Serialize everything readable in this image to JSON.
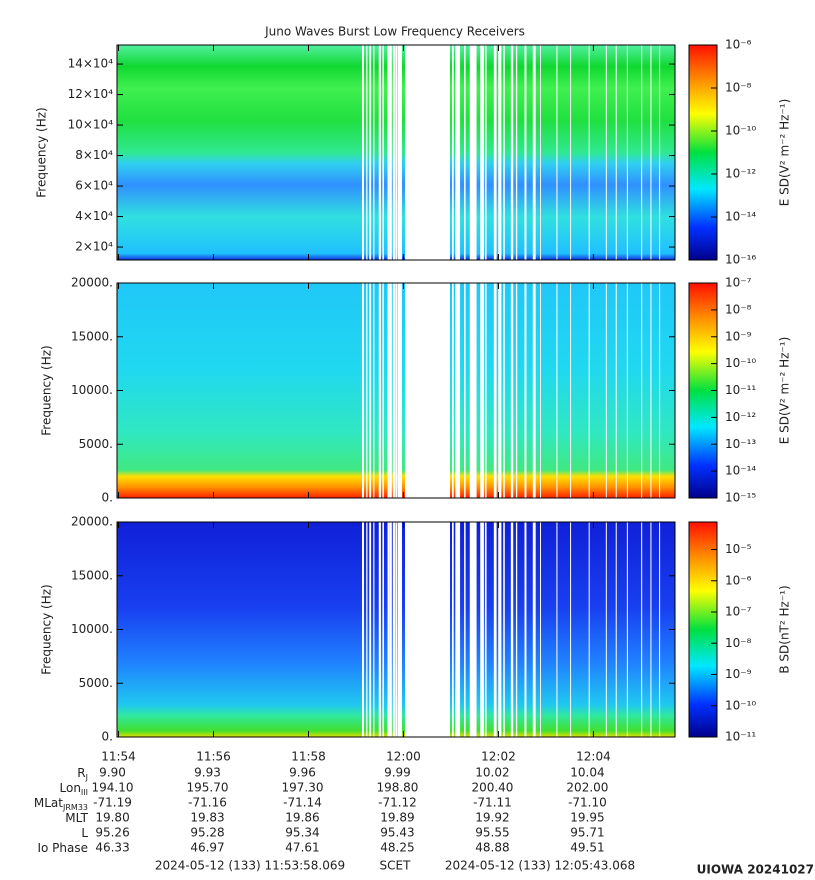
{
  "title": "Juno Waves Burst Low Frequency Receivers",
  "chart_data": [
    {
      "type": "spectrogram",
      "ylabel": "Frequency (Hz)",
      "ylim": [
        11500,
        152500
      ],
      "yticks": [
        {
          "value": 20000,
          "label": "2×10⁴"
        },
        {
          "value": 40000,
          "label": "4×10⁴"
        },
        {
          "value": 60000,
          "label": "6×10⁴"
        },
        {
          "value": 80000,
          "label": "8×10⁴"
        },
        {
          "value": 100000,
          "label": "10×10⁴"
        },
        {
          "value": 120000,
          "label": "12×10⁴"
        },
        {
          "value": 140000,
          "label": "14×10⁴"
        }
      ],
      "zlabel": "E SD(V² m⁻² Hz⁻¹)",
      "zscale": "log",
      "zlim": [
        1e-16,
        1e-06
      ],
      "zticks": [
        {
          "value": 1e-06,
          "label": "10⁻⁶"
        },
        {
          "value": 1e-08,
          "label": "10⁻⁸"
        },
        {
          "value": 1e-10,
          "label": "10⁻¹⁰"
        },
        {
          "value": 1e-12,
          "label": "10⁻¹²"
        },
        {
          "value": 1e-14,
          "label": "10⁻¹⁴"
        },
        {
          "value": 1e-16,
          "label": "10⁻¹⁶"
        }
      ]
    },
    {
      "type": "spectrogram",
      "ylabel": "Frequency (Hz)",
      "ylim": [
        0,
        20000
      ],
      "yticks": [
        {
          "value": 0,
          "label": "0."
        },
        {
          "value": 5000,
          "label": "5000."
        },
        {
          "value": 10000,
          "label": "10000."
        },
        {
          "value": 15000,
          "label": "15000."
        },
        {
          "value": 20000,
          "label": "20000."
        }
      ],
      "zlabel": "E SD(V² m⁻² Hz⁻¹)",
      "zscale": "log",
      "zlim": [
        1e-15,
        1e-07
      ],
      "zticks": [
        {
          "value": 1e-07,
          "label": "10⁻⁷"
        },
        {
          "value": 1e-08,
          "label": "10⁻⁸"
        },
        {
          "value": 1e-09,
          "label": "10⁻⁹"
        },
        {
          "value": 1e-10,
          "label": "10⁻¹⁰"
        },
        {
          "value": 1e-11,
          "label": "10⁻¹¹"
        },
        {
          "value": 1e-12,
          "label": "10⁻¹²"
        },
        {
          "value": 1e-13,
          "label": "10⁻¹³"
        },
        {
          "value": 1e-14,
          "label": "10⁻¹⁴"
        },
        {
          "value": 1e-15,
          "label": "10⁻¹⁵"
        }
      ]
    },
    {
      "type": "spectrogram",
      "ylabel": "Frequency (Hz)",
      "ylim": [
        0,
        20000
      ],
      "yticks": [
        {
          "value": 0,
          "label": "0."
        },
        {
          "value": 5000,
          "label": "5000."
        },
        {
          "value": 10000,
          "label": "10000."
        },
        {
          "value": 15000,
          "label": "15000."
        },
        {
          "value": 20000,
          "label": "20000."
        }
      ],
      "zlabel": "B SD(nT² Hz⁻¹)",
      "zscale": "log",
      "zlim": [
        1e-11,
        7.6e-05
      ],
      "zticks": [
        {
          "value": 1e-05,
          "label": "10⁻⁵"
        },
        {
          "value": 1e-06,
          "label": "10⁻⁶"
        },
        {
          "value": 1e-07,
          "label": "10⁻⁷"
        },
        {
          "value": 1e-08,
          "label": "10⁻⁸"
        },
        {
          "value": 1e-09,
          "label": "10⁻⁹"
        },
        {
          "value": 1e-10,
          "label": "10⁻¹⁰"
        },
        {
          "value": 1e-11,
          "label": "10⁻¹¹"
        }
      ]
    }
  ],
  "xticks": [
    "11:54",
    "11:56",
    "11:58",
    "12:00",
    "12:02",
    "12:04"
  ],
  "ephemeris": [
    {
      "label": "R",
      "sub": "J",
      "values": [
        "9.90",
        "9.93",
        "9.96",
        "9.99",
        "10.02",
        "10.04"
      ]
    },
    {
      "label": "Lon",
      "sub": "III",
      "values": [
        "194.10",
        "195.70",
        "197.30",
        "198.80",
        "200.40",
        "202.00"
      ]
    },
    {
      "label": "MLat",
      "sub": "JRM33",
      "values": [
        "-71.19",
        "-71.16",
        "-71.14",
        "-71.12",
        "-71.11",
        "-71.10"
      ]
    },
    {
      "label": "MLT",
      "values": [
        "19.80",
        "19.83",
        "19.86",
        "19.89",
        "19.92",
        "19.95"
      ]
    },
    {
      "label": "L",
      "values": [
        "95.26",
        "95.28",
        "95.34",
        "95.43",
        "95.55",
        "95.71"
      ]
    },
    {
      "label": "Io Phase",
      "values": [
        "46.33",
        "46.97",
        "47.61",
        "48.25",
        "48.88",
        "49.51"
      ]
    }
  ],
  "footer": {
    "start": "2024-05-12 (133) 11:53:58.069",
    "scet": "SCET",
    "end": "2024-05-12 (133) 12:05:43.068",
    "credit": "UIOWA 20241027"
  }
}
